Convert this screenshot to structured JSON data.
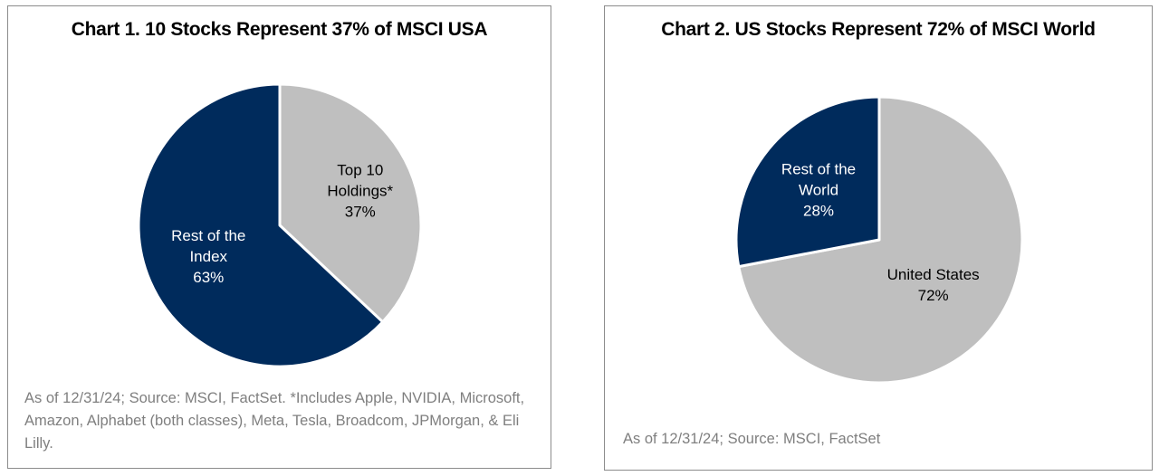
{
  "chart_data": [
    {
      "type": "pie",
      "title": "Chart 1. 10 Stocks Represent 37% of MSCI USA",
      "slices": [
        {
          "label_lines": [
            "Top 10",
            "Holdings*",
            "37%"
          ],
          "value": 37,
          "color": "#bfbfbf",
          "text_color": "#000000"
        },
        {
          "label_lines": [
            "Rest of the",
            "Index",
            "63%"
          ],
          "value": 63,
          "color": "#002b5c",
          "text_color": "#ffffff"
        }
      ],
      "start_angle_deg": 0,
      "source": "As of 12/31/24; Source: MSCI, FactSet. *Includes Apple, NVIDIA, Microsoft, Amazon, Alphabet (both classes), Meta, Tesla, Broadcom, JPMorgan, & Eli Lilly."
    },
    {
      "type": "pie",
      "title": "Chart 2. US Stocks Represent 72% of MSCI World",
      "slices": [
        {
          "label_lines": [
            "United States",
            "72%"
          ],
          "value": 72,
          "color": "#bfbfbf",
          "text_color": "#000000"
        },
        {
          "label_lines": [
            "Rest of the",
            "World",
            "28%"
          ],
          "value": 28,
          "color": "#002b5c",
          "text_color": "#ffffff"
        }
      ],
      "start_angle_deg": 0,
      "source": "As of 12/31/24; Source: MSCI, FactSet"
    }
  ]
}
